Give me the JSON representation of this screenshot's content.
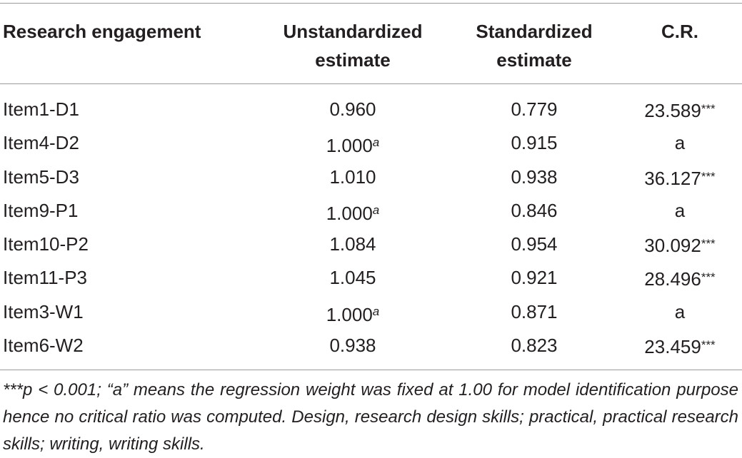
{
  "table": {
    "headers": {
      "col0": "Research engagement",
      "col1": "Unstandardized estimate",
      "col2": "Standardized estimate",
      "col3": "C.R."
    },
    "rows": [
      {
        "item": "Item1-D1",
        "unstd": "0.960",
        "unstd_sup": "",
        "std": "0.779",
        "cr": "23.589",
        "cr_sig": "***"
      },
      {
        "item": "Item4-D2",
        "unstd": "1.000",
        "unstd_sup": "a",
        "std": "0.915",
        "cr": "a",
        "cr_sig": ""
      },
      {
        "item": "Item5-D3",
        "unstd": "1.010",
        "unstd_sup": "",
        "std": "0.938",
        "cr": "36.127",
        "cr_sig": "***"
      },
      {
        "item": "Item9-P1",
        "unstd": "1.000",
        "unstd_sup": "a",
        "std": "0.846",
        "cr": "a",
        "cr_sig": ""
      },
      {
        "item": "Item10-P2",
        "unstd": "1.084",
        "unstd_sup": "",
        "std": "0.954",
        "cr": "30.092",
        "cr_sig": "***"
      },
      {
        "item": "Item11-P3",
        "unstd": "1.045",
        "unstd_sup": "",
        "std": "0.921",
        "cr": "28.496",
        "cr_sig": "***"
      },
      {
        "item": "Item3-W1",
        "unstd": "1.000",
        "unstd_sup": "a",
        "std": "0.871",
        "cr": "a",
        "cr_sig": ""
      },
      {
        "item": "Item6-W2",
        "unstd": "0.938",
        "unstd_sup": "",
        "std": "0.823",
        "cr": "23.459",
        "cr_sig": "***"
      }
    ],
    "footnote": "***p < 0.001; “a” means the regression weight was fixed at 1.00 for model identification purpose hence no critical ratio was computed. Design, research design skills; practical, practical research skills; writing, writing skills."
  }
}
